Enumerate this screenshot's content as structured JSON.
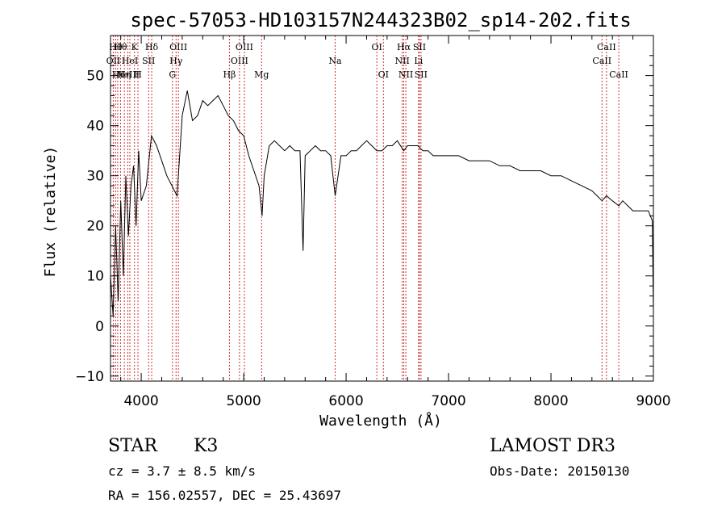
{
  "chart_data": {
    "type": "line",
    "title": "spec-57053-HD103157N244323B02_sp14-202.fits",
    "xlabel": "Wavelength (Å)",
    "ylabel": "Flux (relative)",
    "xlim": [
      3700,
      9000
    ],
    "ylim": [
      -11,
      58
    ],
    "x_ticks": [
      4000,
      5000,
      6000,
      7000,
      8000,
      9000
    ],
    "y_ticks": [
      -10,
      0,
      10,
      20,
      30,
      40,
      50
    ],
    "grid": false,
    "series": [
      {
        "x": [
          3700,
          3725,
          3750,
          3775,
          3800,
          3825,
          3850,
          3875,
          3900,
          3925,
          3950,
          3975,
          4000,
          4050,
          4100,
          4150,
          4200,
          4250,
          4300,
          4350,
          4400,
          4450,
          4500,
          4550,
          4600,
          4650,
          4700,
          4750,
          4800,
          4850,
          4900,
          4950,
          5000,
          5050,
          5100,
          5150,
          5180,
          5200,
          5250,
          5300,
          5350,
          5400,
          5450,
          5500,
          5550,
          5580,
          5600,
          5650,
          5700,
          5750,
          5800,
          5850,
          5893,
          5950,
          6000,
          6050,
          6100,
          6150,
          6200,
          6250,
          6300,
          6350,
          6400,
          6450,
          6500,
          6563,
          6600,
          6650,
          6700,
          6750,
          6800,
          6850,
          6900,
          6950,
          7000,
          7100,
          7200,
          7300,
          7400,
          7500,
          7600,
          7700,
          7800,
          7900,
          8000,
          8100,
          8200,
          8300,
          8400,
          8450,
          8498,
          8542,
          8600,
          8662,
          8700,
          8750,
          8800,
          8850,
          8900,
          8950,
          8990,
          9000
        ],
        "y": [
          10,
          2,
          20,
          5,
          25,
          10,
          30,
          18,
          28,
          32,
          20,
          35,
          25,
          28,
          38,
          36,
          33,
          30,
          28,
          26,
          42,
          47,
          41,
          42,
          45,
          44,
          45,
          46,
          44,
          42,
          41,
          39,
          38,
          34,
          31,
          28,
          22,
          30,
          36,
          37,
          36,
          35,
          36,
          35,
          35,
          15,
          34,
          35,
          36,
          35,
          35,
          34,
          26,
          34,
          34,
          35,
          35,
          36,
          37,
          36,
          35,
          35,
          36,
          36,
          37,
          35,
          36,
          36,
          36,
          35,
          35,
          34,
          34,
          34,
          34,
          34,
          33,
          33,
          33,
          32,
          32,
          31,
          31,
          31,
          30,
          30,
          29,
          28,
          27,
          26,
          25,
          26,
          25,
          24,
          25,
          24,
          23,
          23,
          23,
          23,
          21,
          3
        ]
      }
    ],
    "lines": [
      {
        "wave": 3727,
        "label": "OII",
        "row": 1
      },
      {
        "wave": 3750,
        "label": "Hθ",
        "row": 0
      },
      {
        "wave": 3770,
        "label": "Hι",
        "row": 2
      },
      {
        "wave": 3798,
        "label": "Hθ",
        "row": 0
      },
      {
        "wave": 3835,
        "label": "Hη",
        "row": 2
      },
      {
        "wave": 3869,
        "label": "NeIII",
        "row": 2
      },
      {
        "wave": 3889,
        "label": "HeI",
        "row": 1
      },
      {
        "wave": 3934,
        "label": "K",
        "row": 0
      },
      {
        "wave": 3968,
        "label": "H",
        "row": 2
      },
      {
        "wave": 4072,
        "label": "SII",
        "row": 1
      },
      {
        "wave": 4102,
        "label": "Hδ",
        "row": 0
      },
      {
        "wave": 4305,
        "label": "G",
        "row": 2
      },
      {
        "wave": 4340,
        "label": "Hγ",
        "row": 1
      },
      {
        "wave": 4363,
        "label": "OIII",
        "row": 0
      },
      {
        "wave": 4861,
        "label": "Hβ",
        "row": 2
      },
      {
        "wave": 4959,
        "label": "OIII",
        "row": 1
      },
      {
        "wave": 5007,
        "label": "OIII",
        "row": 0
      },
      {
        "wave": 5175,
        "label": "Mg",
        "row": 2
      },
      {
        "wave": 5893,
        "label": "Na",
        "row": 1
      },
      {
        "wave": 6300,
        "label": "OI",
        "row": 0
      },
      {
        "wave": 6364,
        "label": "OI",
        "row": 2
      },
      {
        "wave": 6548,
        "label": "NII",
        "row": 1
      },
      {
        "wave": 6563,
        "label": "Hα",
        "row": 0
      },
      {
        "wave": 6583,
        "label": "NII",
        "row": 2
      },
      {
        "wave": 6707,
        "label": "Li",
        "row": 1
      },
      {
        "wave": 6716,
        "label": "SII",
        "row": 0
      },
      {
        "wave": 6731,
        "label": "SII",
        "row": 2
      },
      {
        "wave": 8498,
        "label": "CaII",
        "row": 1
      },
      {
        "wave": 8542,
        "label": "CaII",
        "row": 0
      },
      {
        "wave": 8662,
        "label": "CaII",
        "row": 2
      }
    ]
  },
  "footer": {
    "class_label": "STAR",
    "subclass": "K3",
    "survey": "LAMOST DR3",
    "cz": "cz = 3.7 ± 8.5 km/s",
    "obs_date": "Obs-Date: 20150130",
    "coords": "RA = 156.02557, DEC =  25.43697"
  },
  "colors": {
    "spectrum": "#000000",
    "line_markers": "#cc3333",
    "axes": "#000000",
    "background": "#ffffff"
  }
}
